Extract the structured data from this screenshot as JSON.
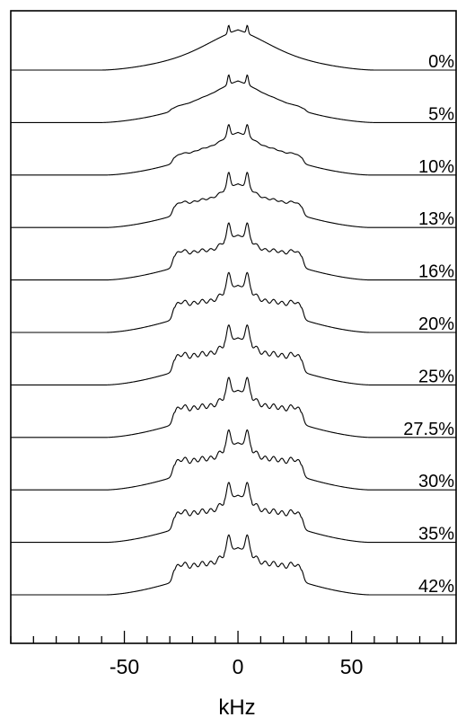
{
  "chart_data": {
    "type": "line",
    "xlabel": "kHz",
    "ylabel": "",
    "xlim": [
      -100,
      96
    ],
    "x_ticks": [
      "-50",
      "0",
      "50"
    ],
    "x_tick_values": [
      -50,
      0,
      50
    ],
    "minor_tick_step": 10,
    "grid": false,
    "legend": "none",
    "series": [
      {
        "name": "0%",
        "shape": {
          "e": 60,
          "w": 30,
          "sp": 0.6,
          "sigma": 22,
          "amp": 32,
          "sat": 0,
          "wig": 0
        }
      },
      {
        "name": "5%",
        "shape": {
          "e": 60,
          "w": 29,
          "sp": 0.7,
          "sigma": 30,
          "amp": 34,
          "sat": 0.25,
          "wig": 0.5
        }
      },
      {
        "name": "10%",
        "shape": {
          "e": 58,
          "w": 28,
          "sp": 0.9,
          "sigma": 40,
          "amp": 36,
          "sat": 0.55,
          "wig": 1
        }
      },
      {
        "name": "13%",
        "shape": {
          "e": 58,
          "w": 28,
          "sp": 1.0,
          "sigma": 60,
          "amp": 38,
          "sat": 0.8,
          "wig": 1.5
        }
      },
      {
        "name": "16%",
        "shape": {
          "e": 58,
          "w": 28,
          "sp": 1.1,
          "sigma": 90,
          "amp": 40,
          "sat": 1,
          "wig": 2
        }
      },
      {
        "name": "20%",
        "shape": {
          "e": 58,
          "w": 28,
          "sp": 1.2,
          "sigma": 120,
          "amp": 42,
          "sat": 1,
          "wig": 2.5
        }
      },
      {
        "name": "25%",
        "shape": {
          "e": 58,
          "w": 28,
          "sp": 1.2,
          "sigma": 140,
          "amp": 42,
          "sat": 1,
          "wig": 3
        }
      },
      {
        "name": "27.5%",
        "shape": {
          "e": 58,
          "w": 28,
          "sp": 1.2,
          "sigma": 140,
          "amp": 42,
          "sat": 1,
          "wig": 3
        }
      },
      {
        "name": "30%",
        "shape": {
          "e": 58,
          "w": 28,
          "sp": 1.2,
          "sigma": 140,
          "amp": 42,
          "sat": 1,
          "wig": 3
        }
      },
      {
        "name": "35%",
        "shape": {
          "e": 58,
          "w": 28,
          "sp": 1.2,
          "sigma": 140,
          "amp": 42,
          "sat": 1,
          "wig": 3
        }
      },
      {
        "name": "42%",
        "shape": {
          "e": 58,
          "w": 28,
          "sp": 1.2,
          "sigma": 140,
          "amp": 42,
          "sat": 1,
          "wig": 3
        }
      }
    ]
  }
}
